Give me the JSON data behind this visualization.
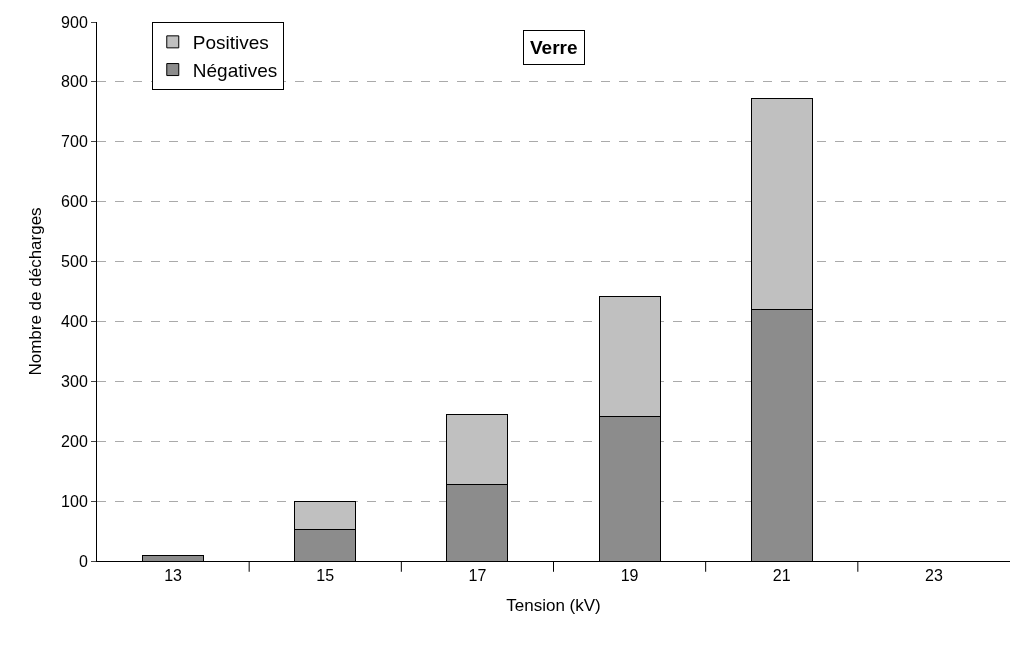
{
  "chart_data": {
    "type": "bar",
    "title": "Verre",
    "xlabel": "Tension (kV)",
    "ylabel": "Nombre de décharges",
    "categories": [
      "13",
      "15",
      "17",
      "19",
      "21",
      "23"
    ],
    "series": [
      {
        "name": "Négatives",
        "color": "#8c8c8c",
        "values": [
          10,
          53,
          128,
          242,
          420,
          null
        ]
      },
      {
        "name": "Positives",
        "color": "#c0c0c0",
        "values": [
          null,
          47,
          117,
          200,
          353,
          null
        ]
      }
    ],
    "stacked": true,
    "ylim": [
      0,
      900
    ],
    "yticks": [
      0,
      100,
      200,
      300,
      400,
      500,
      600,
      700,
      800,
      900
    ],
    "grid": "y",
    "legend": "top left"
  }
}
